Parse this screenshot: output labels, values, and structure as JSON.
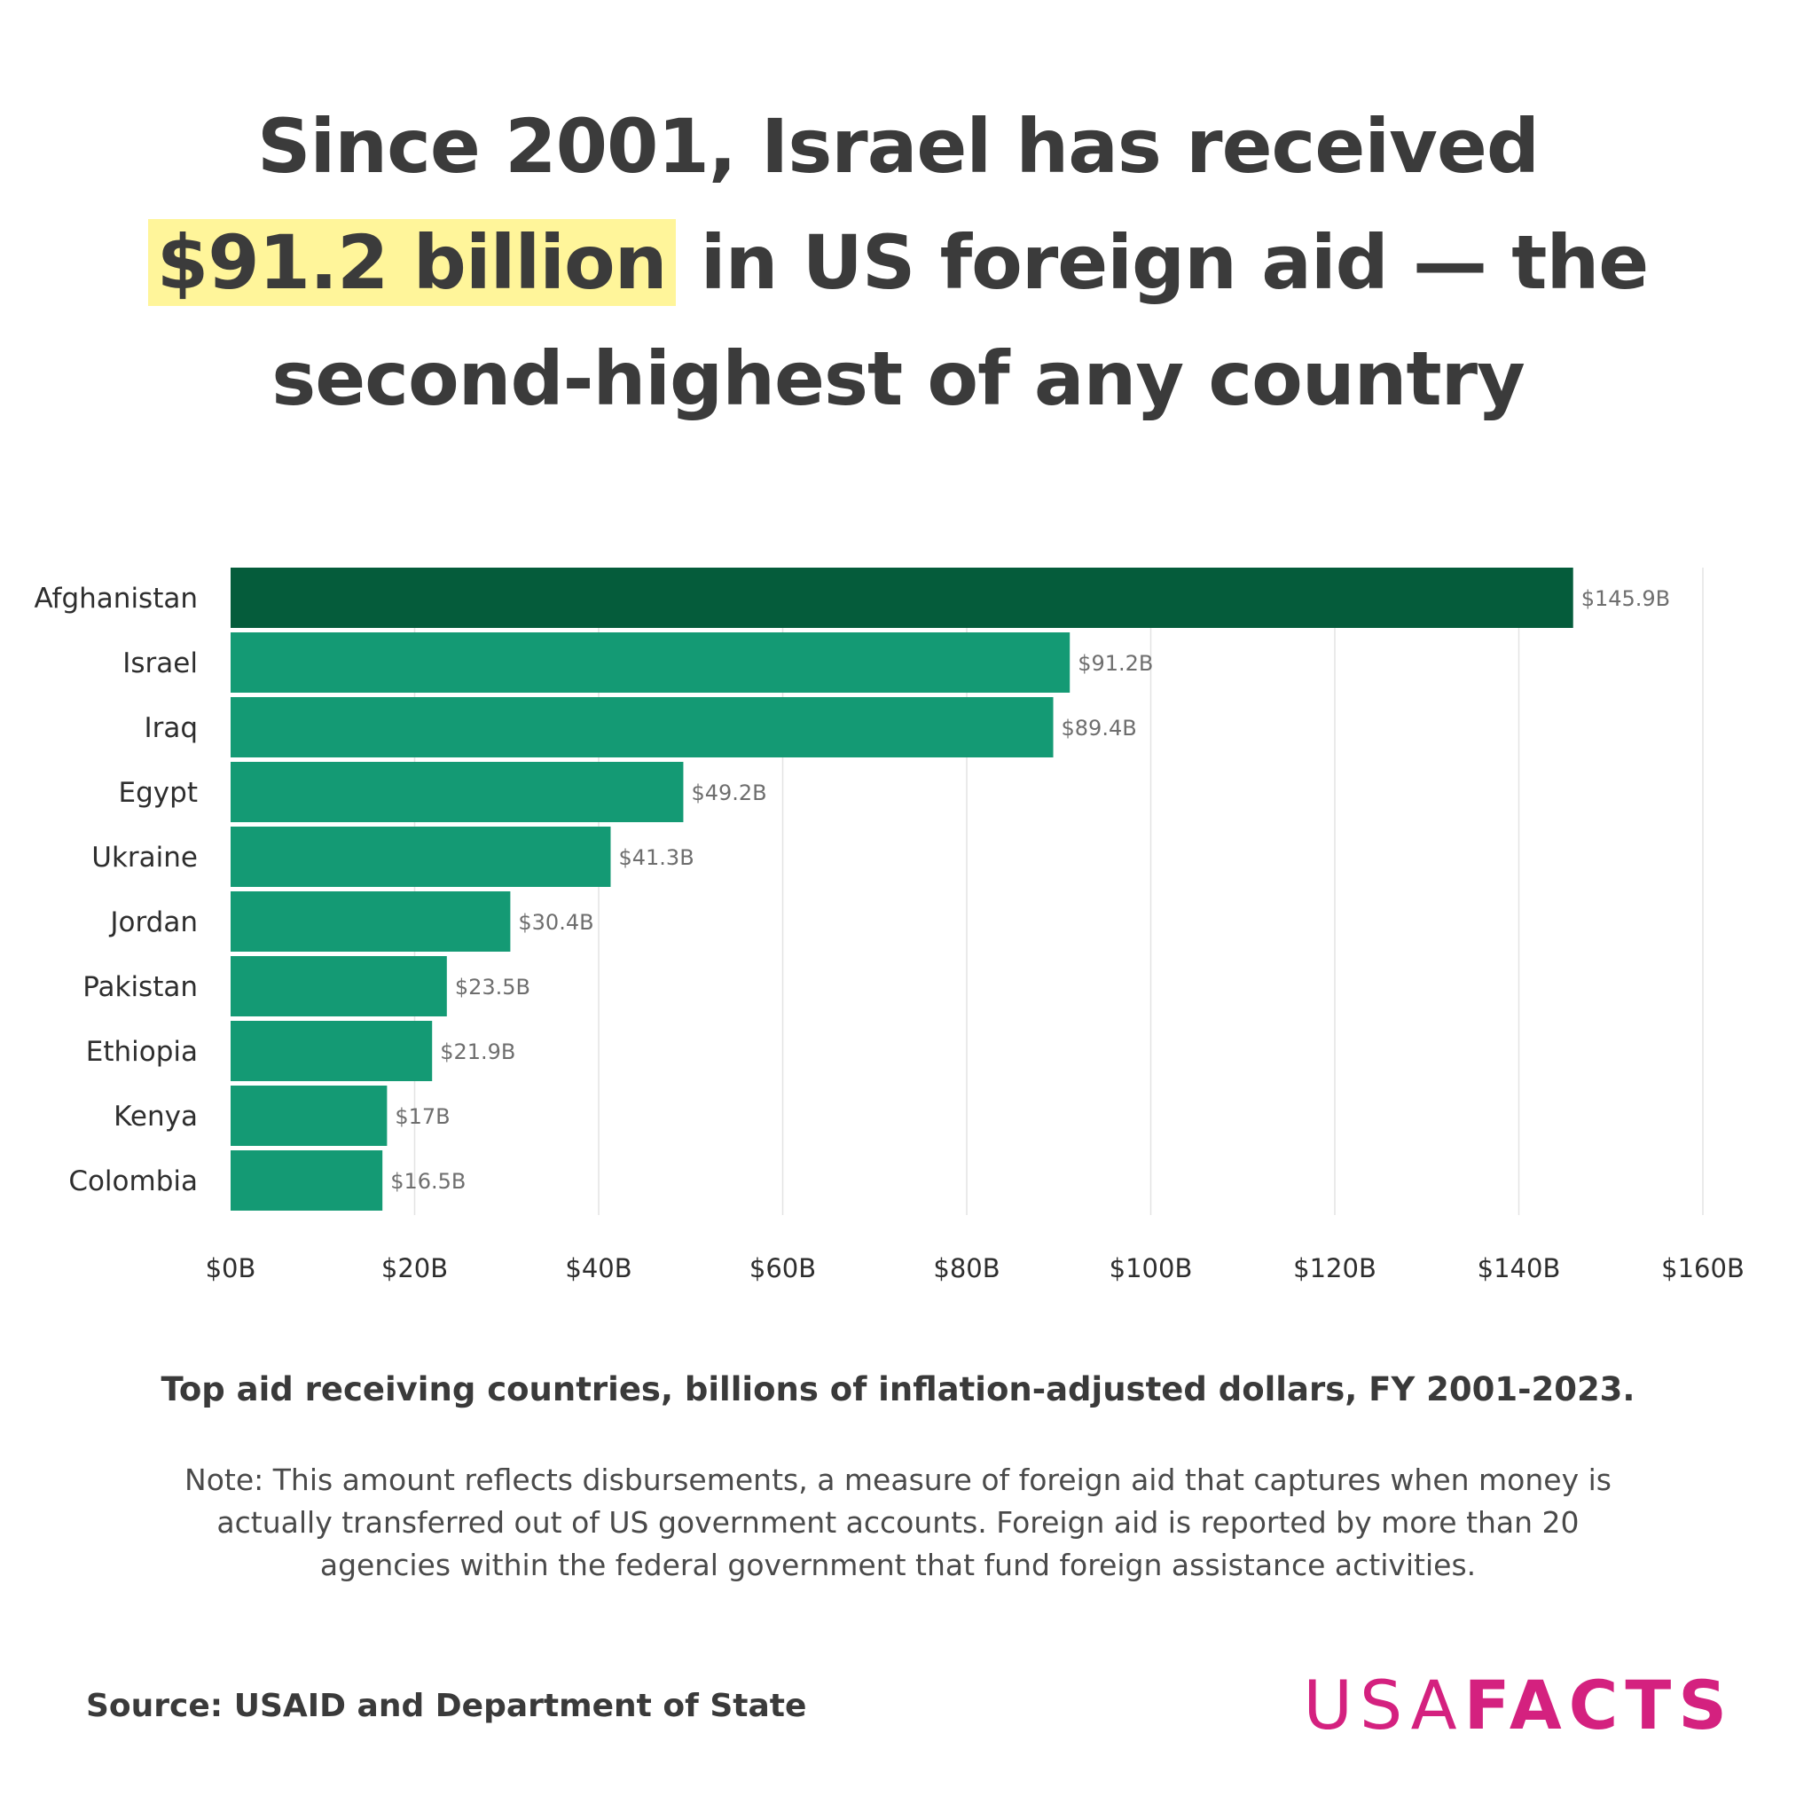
{
  "headline": {
    "line1": "Since 2001, Israel has received",
    "highlight": "$91.2 billion",
    "line2_rest": " in US foreign aid — the",
    "line3": "second-highest of any country"
  },
  "caption": "Top aid receiving countries, billions of inflation-adjusted dollars, FY 2001-2023.",
  "note": "Note: This amount reflects disbursements, a measure of foreign aid that captures when money is actually transferred out of US government accounts. Foreign aid is reported by more than 20 agencies within the federal government that fund foreign assistance activities.",
  "source": "Source: USAID and Department of State",
  "logo": {
    "usa": "USA",
    "facts": "FACTS"
  },
  "colors": {
    "highlight_bar": "#055c3b",
    "bar": "#149a74",
    "highlight_bg": "#fff59a",
    "brand": "#d4217f"
  },
  "chart_data": {
    "type": "bar",
    "orientation": "horizontal",
    "categories": [
      "Afghanistan",
      "Israel",
      "Iraq",
      "Egypt",
      "Ukraine",
      "Jordan",
      "Pakistan",
      "Ethiopia",
      "Kenya",
      "Colombia"
    ],
    "values": [
      145.9,
      91.2,
      89.4,
      49.2,
      41.3,
      30.4,
      23.5,
      21.9,
      17,
      16.5
    ],
    "value_labels": [
      "$145.9B",
      "$91.2B",
      "$89.4B",
      "$49.2B",
      "$41.3B",
      "$30.4B",
      "$23.5B",
      "$21.9B",
      "$17B",
      "$16.5B"
    ],
    "highlighted_category": "Afghanistan",
    "xlim": [
      0,
      160
    ],
    "xticks": [
      0,
      20,
      40,
      60,
      80,
      100,
      120,
      140,
      160
    ],
    "xtick_labels": [
      "$0B",
      "$20B",
      "$40B",
      "$60B",
      "$80B",
      "$100B",
      "$120B",
      "$140B",
      "$160B"
    ],
    "grid": "vertical",
    "legend": "none"
  }
}
